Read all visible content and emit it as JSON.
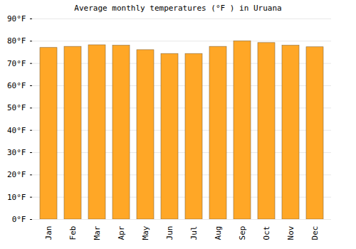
{
  "chart_data": {
    "type": "bar",
    "title": "Average monthly temperatures (°F ) in Uruana",
    "categories": [
      "Jan",
      "Feb",
      "Mar",
      "Apr",
      "May",
      "Jun",
      "Jul",
      "Aug",
      "Sep",
      "Oct",
      "Nov",
      "Dec"
    ],
    "values": [
      77,
      77.5,
      78.2,
      78,
      76,
      74.3,
      74.3,
      77.5,
      80,
      79.2,
      78,
      77.3
    ],
    "color": "#ffa726",
    "ylim": [
      0,
      90
    ],
    "yticks": [
      {
        "value": 0,
        "label": "0°F"
      },
      {
        "value": 10,
        "label": "10°F"
      },
      {
        "value": 20,
        "label": "20°F"
      },
      {
        "value": 30,
        "label": "30°F"
      },
      {
        "value": 40,
        "label": "40°F"
      },
      {
        "value": 50,
        "label": "50°F"
      },
      {
        "value": 60,
        "label": "60°F"
      },
      {
        "value": 70,
        "label": "70°F"
      },
      {
        "value": 80,
        "label": "80°F"
      },
      {
        "value": 90,
        "label": "90°F"
      }
    ],
    "grid": true
  }
}
